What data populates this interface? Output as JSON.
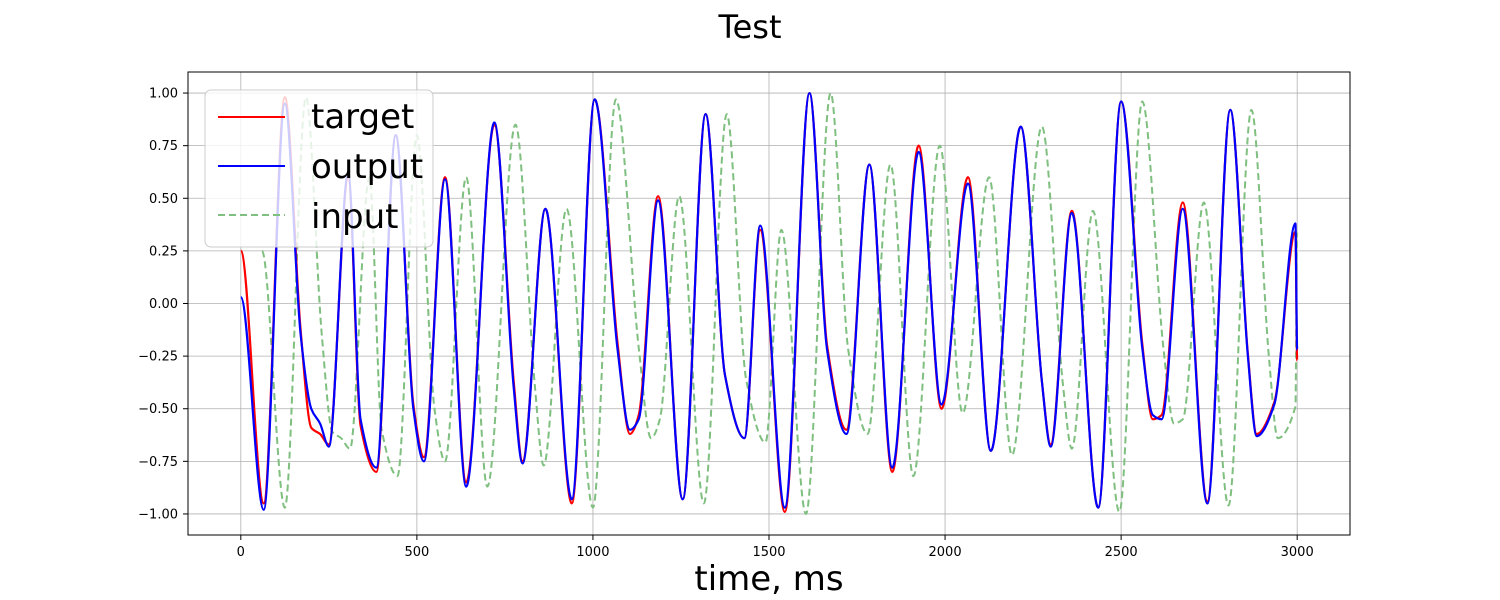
{
  "chart_data": {
    "type": "line",
    "title": "Test",
    "xlabel": "time, ms",
    "ylabel": "",
    "xlim": [
      -150,
      3150
    ],
    "ylim": [
      -1.1,
      1.1
    ],
    "xticks": [
      0,
      500,
      1000,
      1500,
      2000,
      2500,
      3000
    ],
    "yticks": [
      -1.0,
      -0.75,
      -0.5,
      -0.25,
      0.0,
      0.25,
      0.5,
      0.75,
      1.0
    ],
    "xtick_labels": [
      "0",
      "500",
      "1000",
      "1500",
      "2000",
      "2500",
      "3000"
    ],
    "ytick_labels": [
      "−1.00",
      "−0.75",
      "−0.50",
      "−0.25",
      "0.00",
      "0.25",
      "0.50",
      "0.75",
      "1.00"
    ],
    "grid": true,
    "legend_position": "top-left",
    "peaks_x": [
      0,
      65,
      125,
      170,
      200,
      225,
      250,
      305,
      340,
      385,
      440,
      490,
      520,
      580,
      640,
      720,
      775,
      800,
      865,
      940,
      1005,
      1070,
      1105,
      1130,
      1185,
      1255,
      1320,
      1375,
      1430,
      1475,
      1545,
      1615,
      1665,
      1720,
      1785,
      1850,
      1925,
      1990,
      2065,
      2130,
      2215,
      2275,
      2300,
      2360,
      2435,
      2500,
      2560,
      2590,
      2615,
      2675,
      2745,
      2810,
      2860,
      2885,
      2935,
      2995,
      3000
    ],
    "target_peaks_y": [
      0.25,
      -0.95,
      0.98,
      -0.13,
      -0.59,
      -0.62,
      -0.67,
      0.6,
      -0.58,
      -0.8,
      0.8,
      -0.48,
      -0.73,
      0.6,
      -0.85,
      0.85,
      -0.37,
      -0.75,
      0.45,
      -0.95,
      0.97,
      -0.19,
      -0.62,
      -0.53,
      0.51,
      -0.93,
      0.9,
      -0.34,
      -0.64,
      0.35,
      -0.99,
      1.0,
      -0.2,
      -0.6,
      0.66,
      -0.8,
      0.75,
      -0.5,
      0.6,
      -0.7,
      0.84,
      -0.37,
      -0.67,
      0.44,
      -0.97,
      0.96,
      -0.19,
      -0.55,
      -0.53,
      0.48,
      -0.94,
      0.92,
      -0.24,
      -0.62,
      -0.47,
      0.34,
      -0.27
    ],
    "output_peaks_y": [
      0.03,
      -0.98,
      0.95,
      -0.15,
      -0.5,
      -0.57,
      -0.68,
      0.62,
      -0.55,
      -0.78,
      0.8,
      -0.5,
      -0.75,
      0.59,
      -0.87,
      0.86,
      -0.4,
      -0.76,
      0.45,
      -0.93,
      0.97,
      -0.22,
      -0.6,
      -0.55,
      0.49,
      -0.93,
      0.9,
      -0.34,
      -0.64,
      0.37,
      -0.97,
      1.0,
      -0.22,
      -0.62,
      0.66,
      -0.78,
      0.72,
      -0.48,
      0.57,
      -0.7,
      0.84,
      -0.37,
      -0.68,
      0.43,
      -0.97,
      0.96,
      -0.21,
      -0.53,
      -0.55,
      0.45,
      -0.95,
      0.92,
      -0.25,
      -0.63,
      -0.48,
      0.38,
      -0.22
    ],
    "input_shift_ms": 60,
    "series": [
      {
        "name": "target",
        "color": "#ff0000",
        "style": "solid"
      },
      {
        "name": "output",
        "color": "#0000ff",
        "style": "solid"
      },
      {
        "name": "input",
        "color": "#7fbf7f",
        "style": "dashed"
      }
    ]
  }
}
